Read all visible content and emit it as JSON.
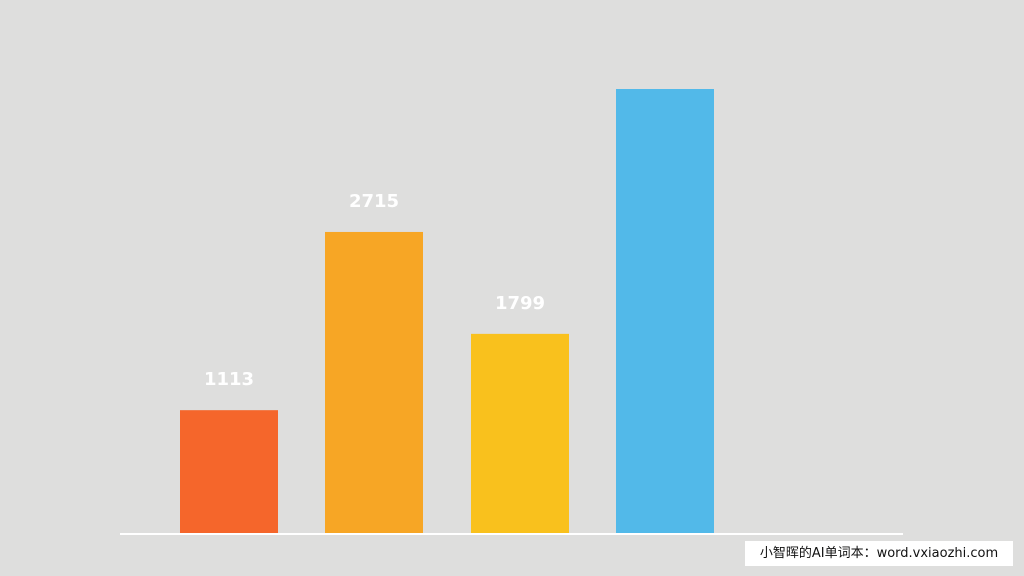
{
  "chart_data": {
    "type": "bar",
    "categories": [
      "",
      "",
      "",
      ""
    ],
    "values": [
      1113,
      2715,
      1799,
      4000
    ],
    "data_labels": [
      "1113",
      "2715",
      "1799",
      ""
    ],
    "title": "",
    "xlabel": "",
    "ylabel": "",
    "ylim": [
      0,
      4800
    ],
    "grid": false,
    "legend": "none",
    "bar_colors": [
      "#f5662b",
      "#f7a625",
      "#f9c11d",
      "#52b9e9"
    ],
    "background_color": "#dededd",
    "axis_color": "#ffffff",
    "label_color": "#ffffff"
  },
  "watermark": {
    "text": "小智晖的AI单词本：word.vxiaozhi.com"
  }
}
